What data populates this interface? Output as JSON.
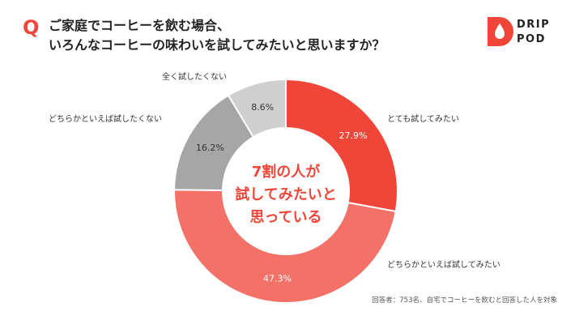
{
  "header": {
    "q_mark": "Q",
    "question_lines": [
      "ご家庭でコーヒーを飲む場合、",
      "いろんなコーヒーの味わいを試してみたいと思いますか？"
    ]
  },
  "logo": {
    "line1": "DRIP",
    "line2": "POD"
  },
  "chart_data": {
    "type": "pie",
    "donut": true,
    "categories": [
      "とても試してみたい",
      "どちらかといえば試してみたい",
      "どちらかといえば試したくない",
      "全く試したくない"
    ],
    "values": [
      27.9,
      47.3,
      16.2,
      8.6
    ],
    "value_labels": [
      "27.9%",
      "47.3%",
      "16.2%",
      "8.6%"
    ],
    "colors": [
      "#f0463a",
      "#f47168",
      "#a6a6a6",
      "#cfcfcf"
    ],
    "center_text": [
      "7割の人が",
      "試してみたいと",
      "思っている"
    ],
    "center_color": "#f0463a"
  },
  "footnote": "回答者：753名、自宅でコーヒーを飲むと回答した人を対象"
}
